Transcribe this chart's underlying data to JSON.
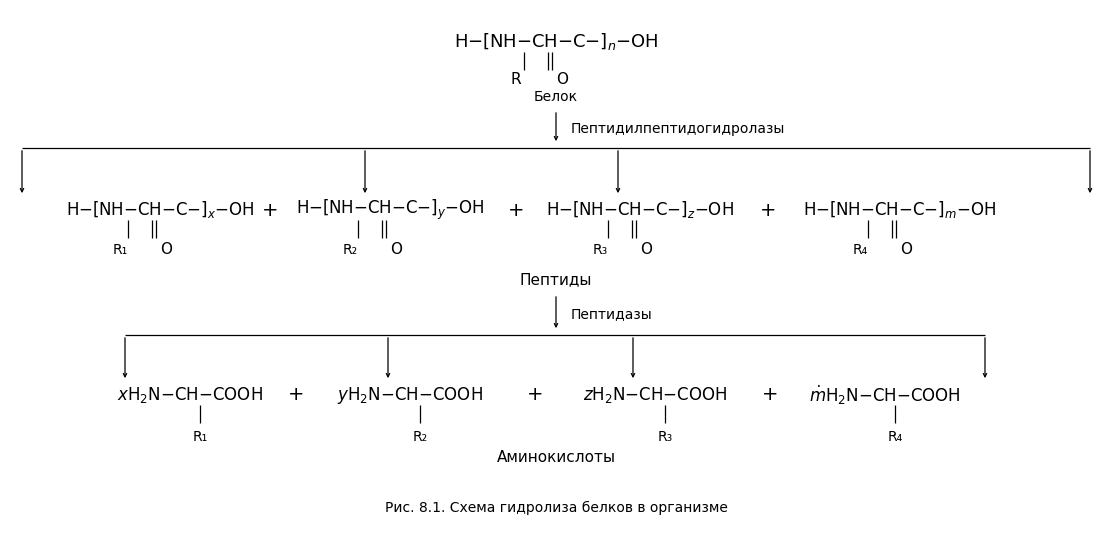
{
  "title": "Рис. 8.1. Схема гидролиза белков в организме",
  "background_color": "#ffffff",
  "text_color": "#000000",
  "figsize": [
    11.13,
    5.35
  ],
  "dpi": 100,
  "protein_label": "Белок",
  "enzyme1_label": "Пептидилпептидогидролазы",
  "peptides_label": "Пептиды",
  "enzyme2_label": "Пептидазы",
  "amino_label": "Аминокислоты",
  "font_size_main": 11,
  "font_size_label": 10,
  "font_size_sub": 9,
  "font_size_title": 9
}
